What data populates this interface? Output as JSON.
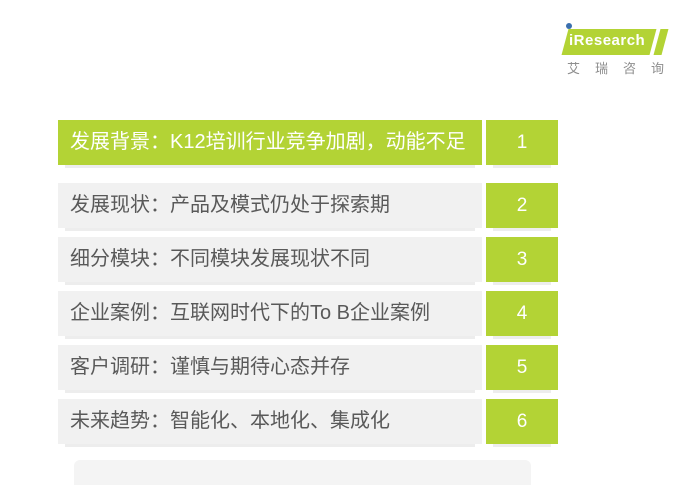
{
  "logo": {
    "brand_i": "i",
    "brand_rest": "Research",
    "cn_name": "艾瑞咨询",
    "green": "#b3d335",
    "dot_blue": "#3a6fae",
    "cn_color": "#8e8e8e"
  },
  "toc": {
    "accent_green": "#b3d335",
    "row_bg": "#f1f1f1",
    "row_text_color": "#595959",
    "highlighted_text_color": "#ffffff",
    "rows": [
      {
        "label": "发展背景：K12培训行业竞争加剧，动能不足",
        "number": "1",
        "highlighted": true
      },
      {
        "label": "发展现状：产品及模式仍处于探索期",
        "number": "2",
        "highlighted": false
      },
      {
        "label": "细分模块：不同模块发展现状不同",
        "number": "3",
        "highlighted": false
      },
      {
        "label": "企业案例：互联网时代下的To B企业案例",
        "number": "4",
        "highlighted": false
      },
      {
        "label": "客户调研：谨慎与期待心态并存",
        "number": "5",
        "highlighted": false
      },
      {
        "label": "未来趋势：智能化、本地化、集成化",
        "number": "6",
        "highlighted": false
      }
    ]
  }
}
